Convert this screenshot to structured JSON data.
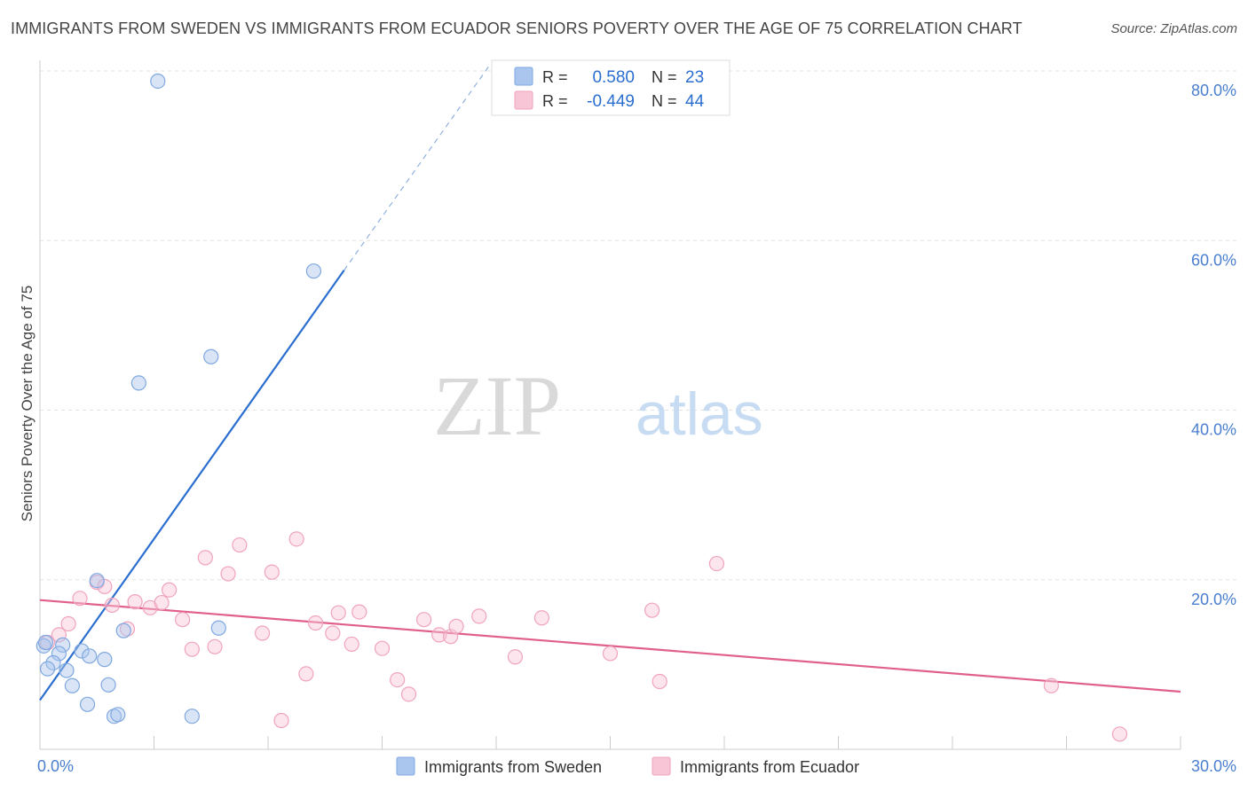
{
  "title": "IMMIGRANTS FROM SWEDEN VS IMMIGRANTS FROM ECUADOR SENIORS POVERTY OVER THE AGE OF 75 CORRELATION CHART",
  "source": "Source: ZipAtlas.com",
  "watermark": {
    "zip": "ZIP",
    "atlas": "atlas"
  },
  "chart_data": {
    "type": "scatter",
    "xlabel": "",
    "ylabel": "Seniors Poverty Over the Age of 75",
    "xlim": [
      0,
      30
    ],
    "ylim": [
      0,
      80
    ],
    "x_tick_labels": [
      {
        "value": 0,
        "label": "0.0%"
      },
      {
        "value": 30,
        "label": "30.0%"
      }
    ],
    "y_tick_labels": [
      {
        "value": 20,
        "label": "20.0%"
      },
      {
        "value": 40,
        "label": "40.0%"
      },
      {
        "value": 60,
        "label": "60.0%"
      },
      {
        "value": 80,
        "label": "80.0%"
      }
    ],
    "grid": true,
    "legend_position": "bottom-center",
    "series": [
      {
        "name": "Immigrants from Sweden",
        "color": "#7fa8e0",
        "fill": "#aac6ee",
        "line_color": "#2a6ed0",
        "stats": {
          "r_label": "R =",
          "r_value": "0.580",
          "n_label": "N =",
          "n_value": "23"
        },
        "trend": {
          "x0": 0,
          "y0": 5.8,
          "x1": 8.0,
          "y1": 56.5,
          "x_ext": 11.8,
          "y_ext": 80.5
        },
        "points": [
          [
            3.1,
            78.8
          ],
          [
            7.2,
            56.4
          ],
          [
            4.5,
            46.3
          ],
          [
            2.6,
            43.2
          ],
          [
            1.5,
            19.9
          ],
          [
            2.2,
            14.0
          ],
          [
            4.7,
            14.3
          ],
          [
            0.1,
            12.2
          ],
          [
            0.6,
            12.3
          ],
          [
            0.5,
            11.3
          ],
          [
            1.1,
            11.6
          ],
          [
            1.3,
            11.0
          ],
          [
            1.7,
            10.6
          ],
          [
            0.35,
            10.2
          ],
          [
            0.7,
            9.3
          ],
          [
            0.2,
            9.5
          ],
          [
            0.85,
            7.5
          ],
          [
            1.8,
            7.6
          ],
          [
            1.25,
            5.3
          ],
          [
            1.95,
            3.9
          ],
          [
            2.05,
            4.1
          ],
          [
            4.0,
            3.9
          ],
          [
            0.15,
            12.6
          ]
        ]
      },
      {
        "name": "Immigrants from Ecuador",
        "color": "#f0a3bd",
        "fill": "#f8c5d6",
        "line_color": "#e0608a",
        "stats": {
          "r_label": "R =",
          "r_value": "-0.449",
          "n_label": "N =",
          "n_value": "44"
        },
        "trend": {
          "x0": 0,
          "y0": 17.6,
          "x1": 30,
          "y1": 6.8
        },
        "points": [
          [
            0.2,
            12.6
          ],
          [
            0.5,
            13.5
          ],
          [
            0.75,
            14.8
          ],
          [
            1.05,
            17.8
          ],
          [
            1.5,
            19.7
          ],
          [
            1.7,
            19.2
          ],
          [
            1.9,
            17.0
          ],
          [
            2.3,
            14.2
          ],
          [
            2.5,
            17.4
          ],
          [
            2.9,
            16.7
          ],
          [
            3.2,
            17.3
          ],
          [
            3.4,
            18.8
          ],
          [
            3.75,
            15.3
          ],
          [
            4.0,
            11.8
          ],
          [
            4.35,
            22.6
          ],
          [
            4.6,
            12.1
          ],
          [
            4.95,
            20.7
          ],
          [
            5.25,
            24.1
          ],
          [
            5.85,
            13.7
          ],
          [
            6.1,
            20.9
          ],
          [
            6.35,
            3.4
          ],
          [
            6.75,
            24.8
          ],
          [
            7.0,
            8.9
          ],
          [
            7.25,
            14.9
          ],
          [
            7.7,
            13.7
          ],
          [
            7.85,
            16.1
          ],
          [
            8.2,
            12.4
          ],
          [
            8.4,
            16.2
          ],
          [
            9.0,
            11.9
          ],
          [
            9.4,
            8.2
          ],
          [
            9.7,
            6.5
          ],
          [
            10.1,
            15.3
          ],
          [
            10.5,
            13.5
          ],
          [
            10.8,
            13.3
          ],
          [
            10.95,
            14.5
          ],
          [
            11.55,
            15.7
          ],
          [
            12.5,
            10.9
          ],
          [
            13.2,
            15.5
          ],
          [
            15.0,
            11.3
          ],
          [
            16.1,
            16.4
          ],
          [
            16.3,
            8.0
          ],
          [
            17.8,
            21.9
          ],
          [
            26.6,
            7.5
          ],
          [
            28.4,
            1.8
          ]
        ]
      }
    ]
  }
}
